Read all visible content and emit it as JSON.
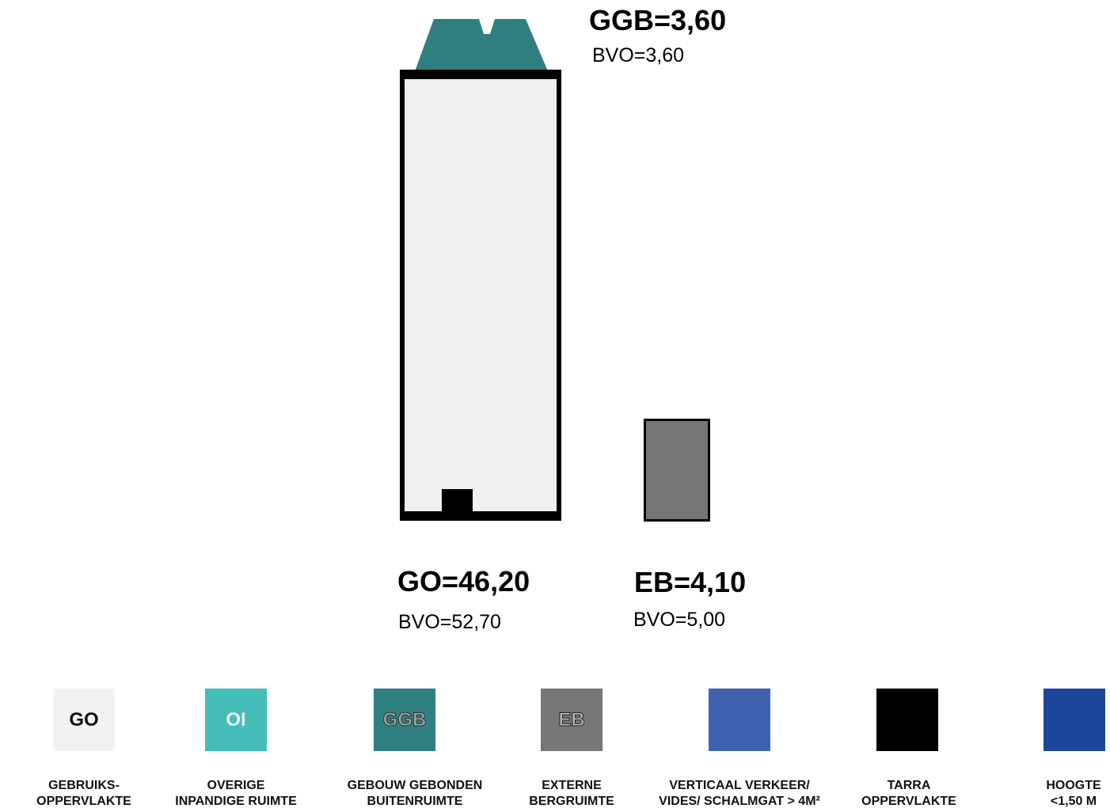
{
  "areas": {
    "ggb": {
      "label": "GGB=3,60",
      "bvo": "BVO=3,60"
    },
    "go": {
      "label": "GO=46,20",
      "bvo": "BVO=52,70"
    },
    "eb": {
      "label": "EB=4,10",
      "bvo": "BVO=5,00"
    }
  },
  "colors": {
    "go": "#f0f0f0",
    "oi": "#45bdb9",
    "ggb": "#2f7f80",
    "eb": "#767676",
    "verticaal_verkeer": "#4063b0",
    "tarra": "#000000",
    "hoogte": "#1c469a"
  },
  "legend": [
    {
      "code": "GO",
      "line1": "GEBRUIKS-",
      "line2": "OPPERVLAKTE"
    },
    {
      "code": "OI",
      "line1": "OVERIGE",
      "line2": "INPANDIGE RUIMTE"
    },
    {
      "code": "GGB",
      "line1": "GEBOUW GEBONDEN",
      "line2": "BUITENRUIMTE"
    },
    {
      "code": "EB",
      "line1": "EXTERNE",
      "line2": "BERGRUIMTE"
    },
    {
      "code": "",
      "line1": "VERTICAAL VERKEER/",
      "line2": "VIDES/ SCHALMGAT > 4M²"
    },
    {
      "code": "",
      "line1": "TARRA",
      "line2": "OPPERVLAKTE"
    },
    {
      "code": "",
      "line1": "HOOGTE",
      "line2": "<1,50 M"
    }
  ]
}
